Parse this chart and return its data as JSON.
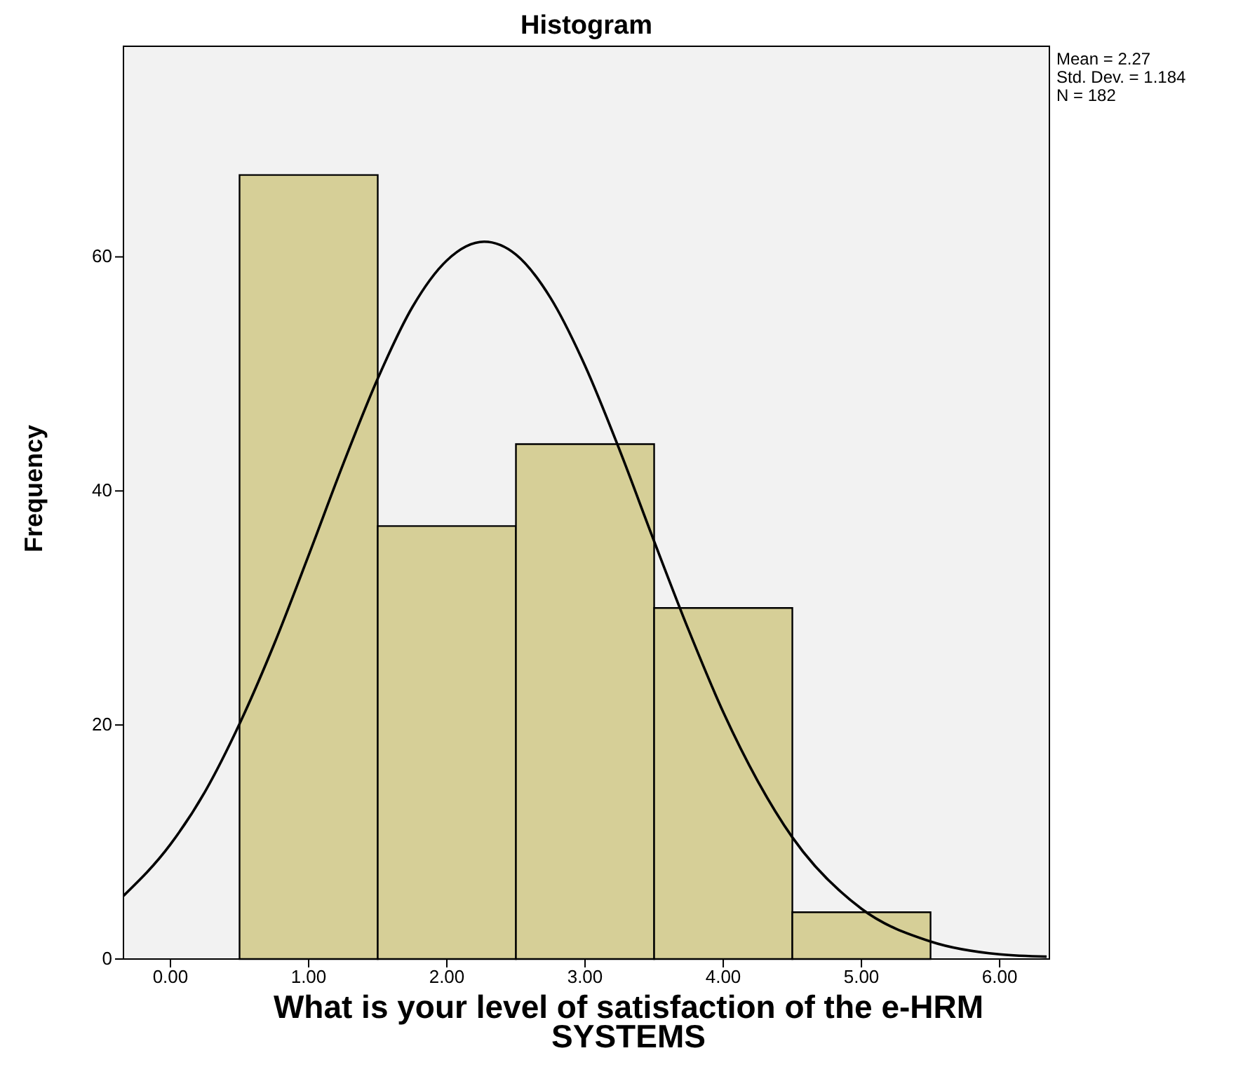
{
  "chart_data": {
    "type": "histogram",
    "title": "Histogram",
    "xlabel": "What is your level of satisfaction of the e-HRM SYSTEMS",
    "ylabel": "Frequency",
    "bins": [
      0.5,
      1.5,
      2.5,
      3.5,
      4.5,
      5.5
    ],
    "values": [
      67,
      37,
      44,
      30,
      4
    ],
    "color": "#d6cf97",
    "series": [
      {
        "type": "line",
        "color": "#000000",
        "x": [
          -0.34,
          0,
          0.25,
          0.5,
          0.75,
          1,
          1.25,
          1.5,
          1.75,
          2,
          2.27,
          2.5,
          2.75,
          3,
          3.25,
          3.5,
          3.75,
          4,
          4.25,
          4.5,
          5,
          5.5,
          6,
          6.34
        ],
        "values": [
          5.4,
          9.8,
          14.3,
          20.1,
          26.9,
          34.5,
          42.3,
          49.6,
          55.7,
          59.7,
          61.3,
          60.2,
          56.5,
          50.7,
          43.5,
          35.7,
          28.1,
          21.1,
          15.2,
          10.4,
          4.3,
          1.5,
          0.4,
          0.2
        ]
      }
    ],
    "xlim": [
      -0.34,
      6.36
    ],
    "xticks": [
      {
        "value": 0,
        "label": "0.00"
      },
      {
        "value": 1,
        "label": "1.00"
      },
      {
        "value": 2,
        "label": "2.00"
      },
      {
        "value": 3,
        "label": "3.00"
      },
      {
        "value": 4,
        "label": "4.00"
      },
      {
        "value": 5,
        "label": "5.00"
      },
      {
        "value": 6,
        "label": "6.00"
      }
    ],
    "ylim": [
      0,
      78
    ],
    "yticks": [
      0,
      20,
      40,
      60
    ],
    "annotations": [
      "Mean = 2.27",
      "Std. Dev. = 1.184",
      "N = 182"
    ]
  }
}
